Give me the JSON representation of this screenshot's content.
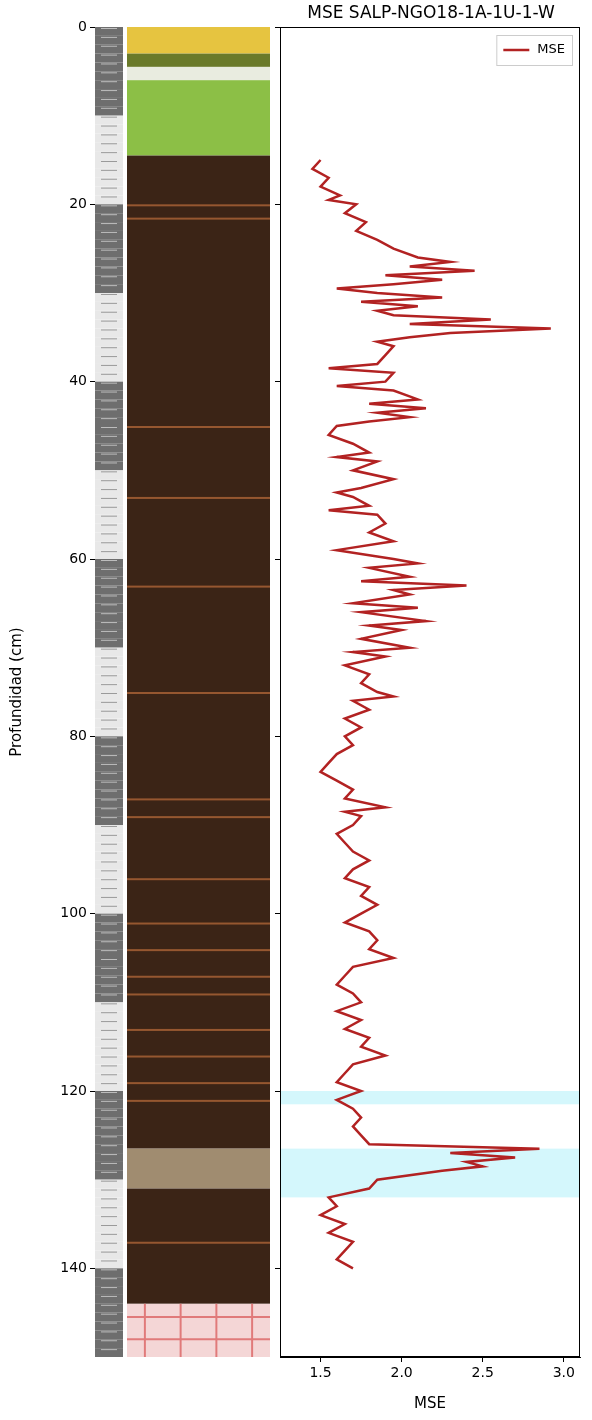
{
  "chart_data": {
    "type": "line",
    "title": "MSE SALP-NGO18-1A-1U-1-W",
    "xlabel": "MSE",
    "ylabel": "Profundidad (cm)",
    "y": [
      15,
      16,
      17,
      18,
      19,
      19.5,
      20,
      21,
      22,
      23,
      24,
      25,
      26,
      26.5,
      27,
      27.5,
      28,
      28.5,
      29,
      29.5,
      30,
      30.5,
      31,
      31.5,
      32,
      32.5,
      33,
      33.5,
      34,
      34.5,
      35,
      35.5,
      36,
      37,
      38,
      38.5,
      39,
      40,
      40.5,
      41,
      42,
      42.5,
      43,
      43.5,
      44,
      44.5,
      45,
      46,
      47,
      48,
      48.5,
      49,
      50,
      51,
      52,
      52.5,
      53,
      54,
      54.5,
      55,
      56,
      57,
      58,
      59,
      60,
      60.5,
      61,
      62,
      62.5,
      63,
      63.5,
      64,
      65,
      65.5,
      66,
      67,
      67.5,
      68,
      69,
      70,
      70.5,
      71,
      72,
      73,
      74,
      75,
      75.5,
      76,
      77,
      78,
      79,
      80,
      81,
      82,
      83,
      84,
      85,
      86,
      87,
      88,
      88.5,
      89,
      90,
      91,
      92,
      93,
      94,
      95,
      96,
      97,
      98,
      99,
      100,
      101,
      102,
      103,
      104,
      105,
      106,
      107,
      108,
      109,
      110,
      111,
      112,
      113,
      114,
      115,
      116,
      117,
      118,
      119,
      120,
      121,
      122,
      123,
      124,
      125,
      126,
      126.5,
      127,
      127.5,
      128,
      128.5,
      129,
      130,
      131,
      132,
      133,
      134,
      135,
      136,
      137,
      138,
      139,
      140
    ],
    "series": [
      {
        "name": "MSE",
        "color": "#b22222",
        "values": [
          1.5,
          1.45,
          1.55,
          1.5,
          1.62,
          1.55,
          1.72,
          1.65,
          1.78,
          1.72,
          1.85,
          1.95,
          2.1,
          2.3,
          2.05,
          2.45,
          1.9,
          2.25,
          1.95,
          1.6,
          1.85,
          2.25,
          1.75,
          2.1,
          1.85,
          1.95,
          2.55,
          2.05,
          2.92,
          2.3,
          2.05,
          1.85,
          1.95,
          1.9,
          1.85,
          1.55,
          1.95,
          1.9,
          1.6,
          1.95,
          2.1,
          1.8,
          2.15,
          1.85,
          2.05,
          1.8,
          1.6,
          1.55,
          1.7,
          1.8,
          1.6,
          1.85,
          1.7,
          1.95,
          1.75,
          1.6,
          1.7,
          1.8,
          1.55,
          1.85,
          1.9,
          1.8,
          1.95,
          1.6,
          1.95,
          2.1,
          1.8,
          2.05,
          1.75,
          2.4,
          1.95,
          2.05,
          1.7,
          2.1,
          1.75,
          2.15,
          1.8,
          2.0,
          1.75,
          2.05,
          1.7,
          1.9,
          1.65,
          1.8,
          1.75,
          1.85,
          1.95,
          1.7,
          1.8,
          1.65,
          1.75,
          1.65,
          1.7,
          1.6,
          1.55,
          1.5,
          1.6,
          1.7,
          1.65,
          1.9,
          1.65,
          1.75,
          1.7,
          1.6,
          1.65,
          1.7,
          1.8,
          1.7,
          1.65,
          1.8,
          1.75,
          1.85,
          1.75,
          1.65,
          1.8,
          1.85,
          1.8,
          1.95,
          1.7,
          1.65,
          1.6,
          1.7,
          1.75,
          1.6,
          1.75,
          1.65,
          1.8,
          1.75,
          1.9,
          1.7,
          1.65,
          1.6,
          1.75,
          1.6,
          1.7,
          1.75,
          1.7,
          1.75,
          1.8,
          2.85,
          2.3,
          2.7,
          2.4,
          2.5,
          2.25,
          1.85,
          1.8,
          1.55,
          1.6,
          1.5,
          1.65,
          1.55,
          1.7,
          1.65,
          1.6,
          1.7
        ]
      }
    ],
    "xlim": [
      1.25,
      3.1
    ],
    "xticks": [
      1.5,
      {
        "value": 2,
        "label": "2.0"
      },
      2.5,
      {
        "value": 3,
        "label": "3.0"
      }
    ],
    "ylim": [
      0,
      150
    ],
    "yticks": [
      0,
      20,
      40,
      60,
      80,
      100,
      120,
      140
    ],
    "bands": [
      {
        "from": 120,
        "to": 121.5
      },
      {
        "from": 126.5,
        "to": 132
      }
    ],
    "legend": "upper right",
    "grid": false
  }
}
